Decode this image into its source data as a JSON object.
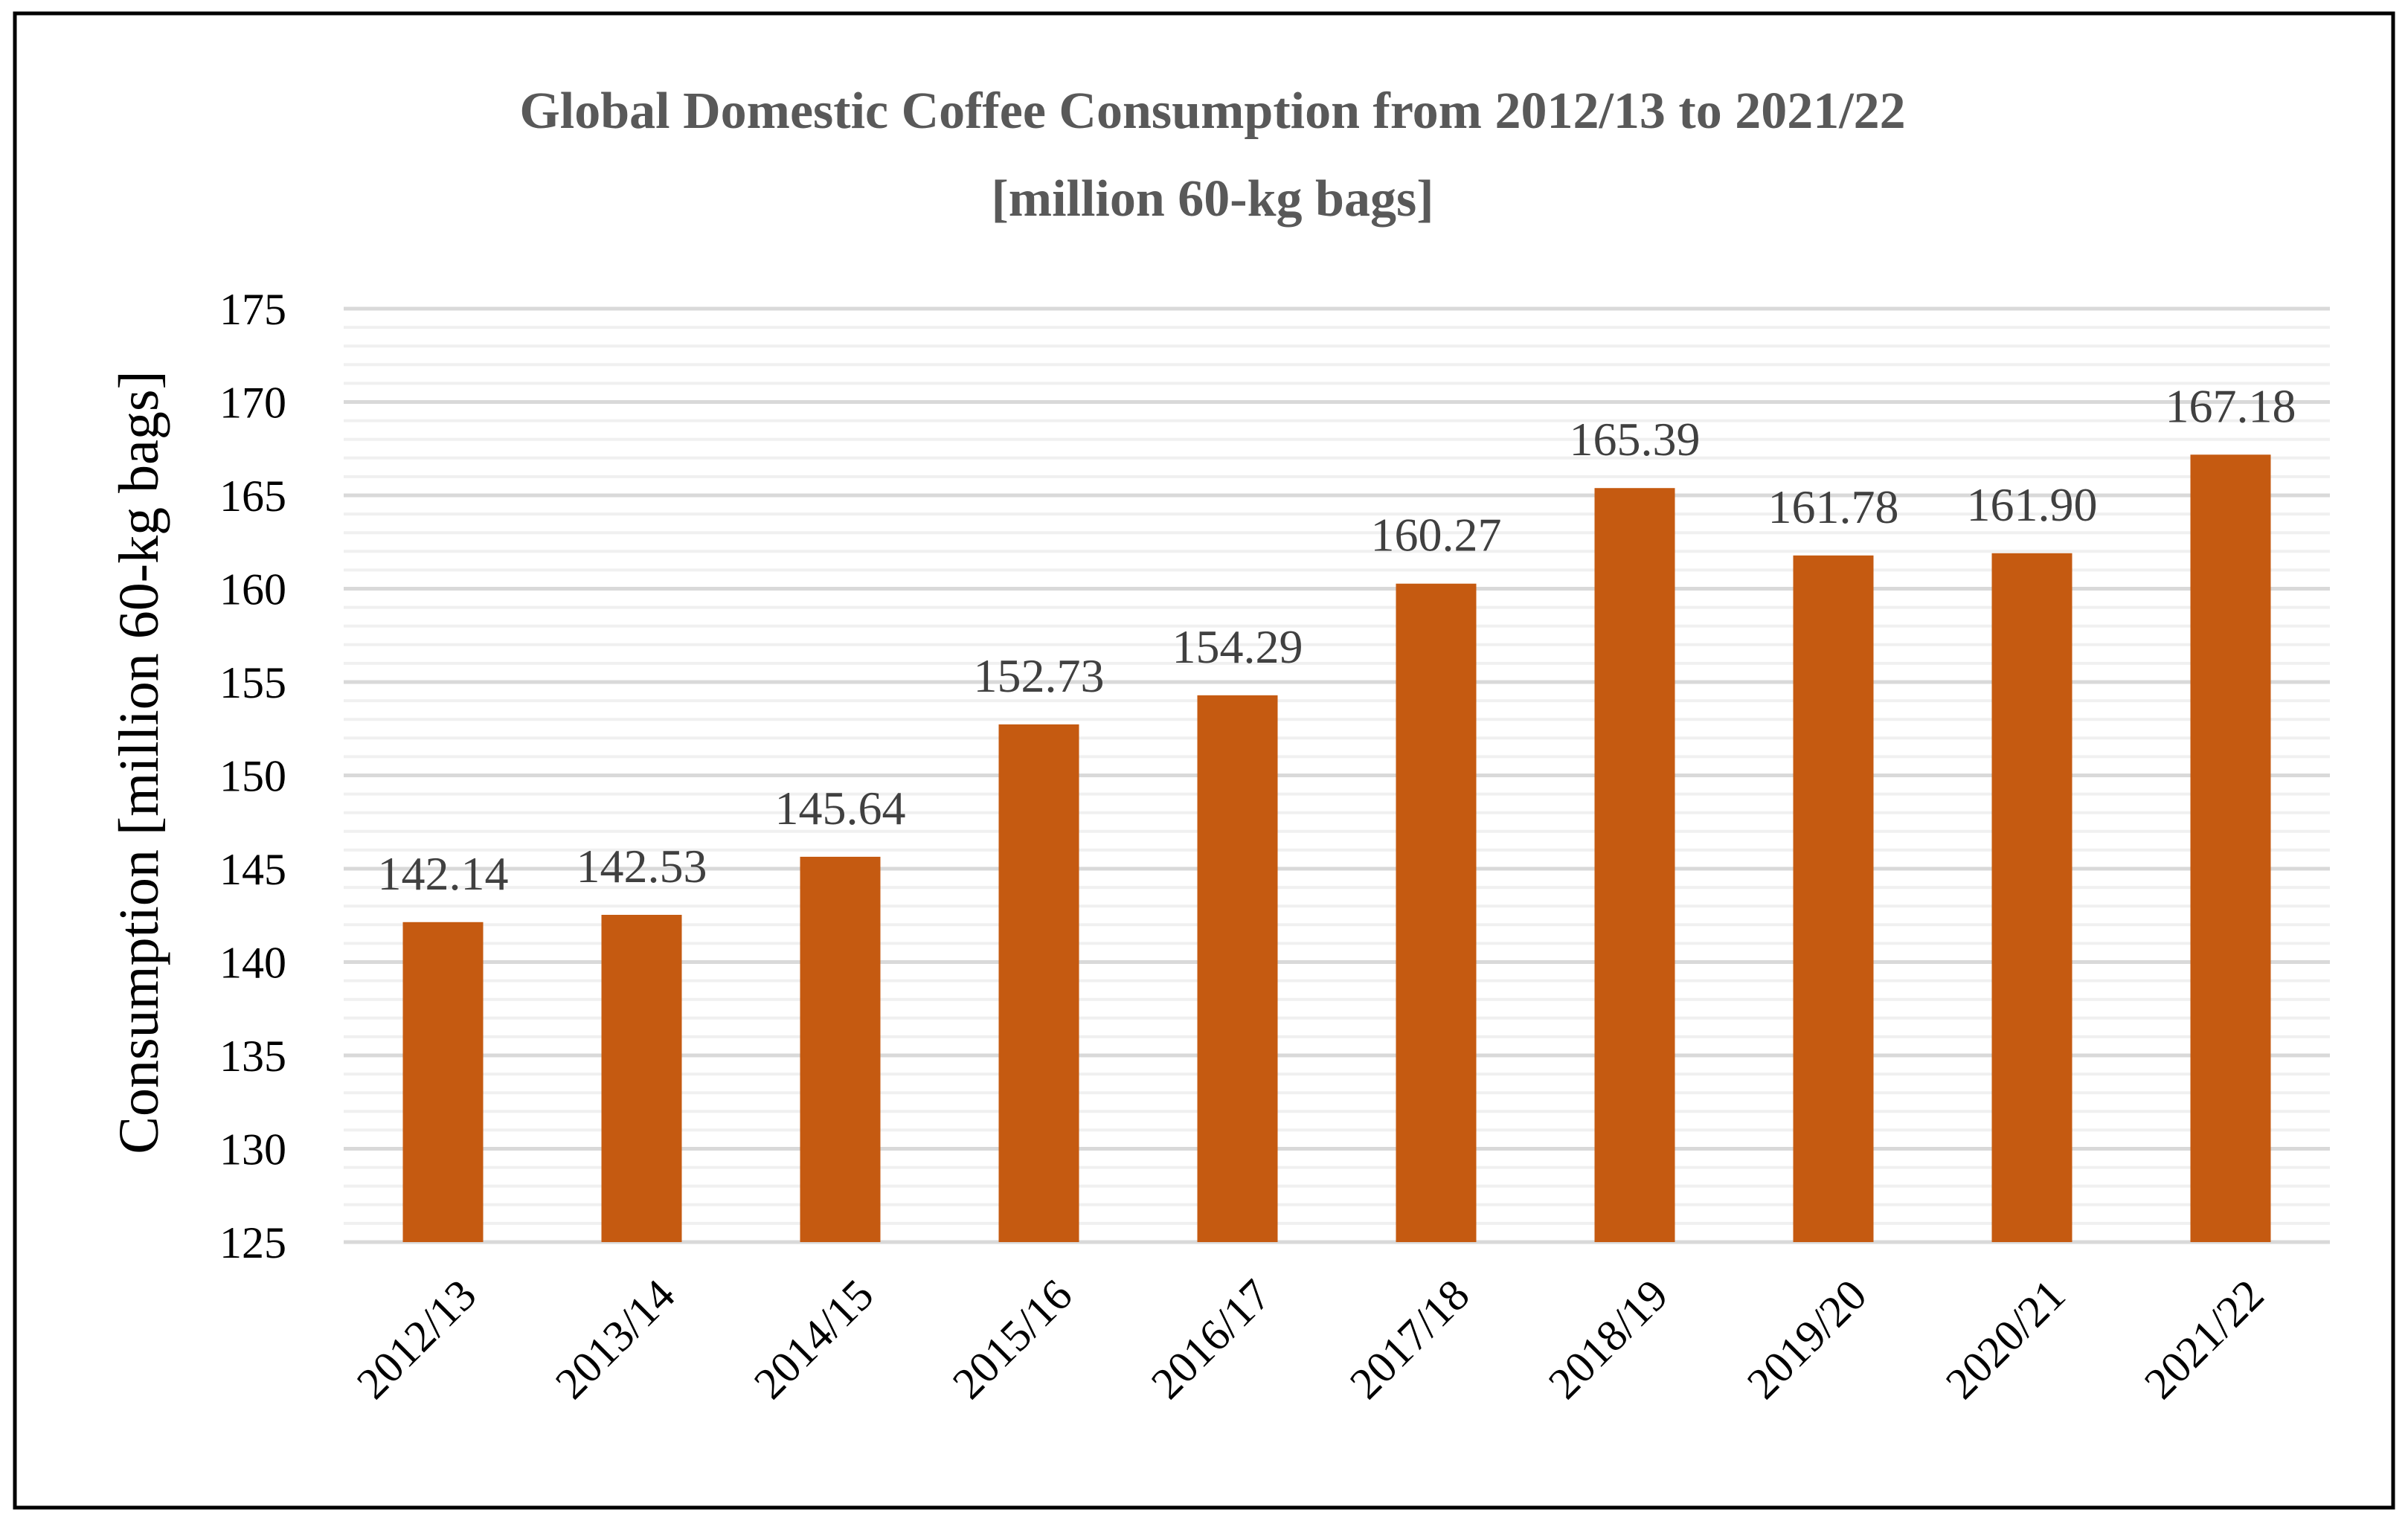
{
  "chart_data": {
    "type": "bar",
    "title_line1": "Global Domestic Coffee Consumption from 2012/13 to 2021/22",
    "title_line2": "[million 60-kg bags]",
    "xlabel": "",
    "ylabel": "Consumption [million 60-kg bags]",
    "ylim": [
      125,
      175
    ],
    "y_major_step": 5,
    "y_minor_step": 1,
    "grid": true,
    "categories": [
      "2012/13",
      "2013/14",
      "2014/15",
      "2015/16",
      "2016/17",
      "2017/18",
      "2018/19",
      "2019/20",
      "2020/21",
      "2021/22"
    ],
    "values": [
      142.14,
      142.53,
      145.64,
      152.73,
      154.29,
      160.27,
      165.39,
      161.78,
      161.9,
      167.18
    ],
    "data_labels": [
      "142.14",
      "142.53",
      "145.64",
      "152.73",
      "154.29",
      "160.27",
      "165.39",
      "161.78",
      "161.90",
      "167.18"
    ],
    "bar_color": "#c55a11"
  }
}
